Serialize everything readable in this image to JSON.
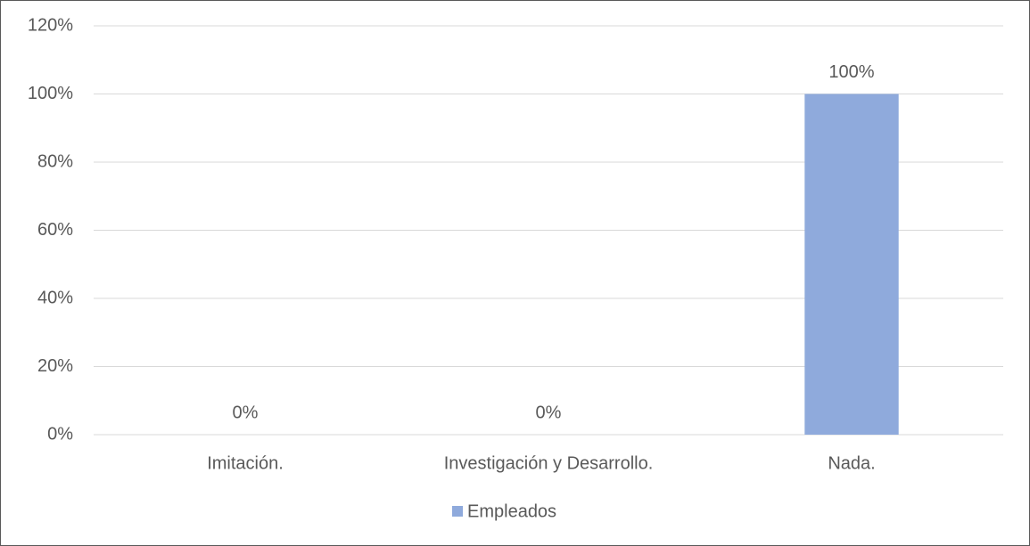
{
  "chart_data": {
    "type": "bar",
    "categories": [
      "Imitación.",
      "Investigación y Desarrollo.",
      "Nada."
    ],
    "series": [
      {
        "name": "Empleados",
        "color": "#8faadc",
        "values": [
          0,
          0,
          100
        ],
        "value_labels": [
          "0%",
          "0%",
          "100%"
        ]
      }
    ],
    "ylim": [
      0,
      120
    ],
    "yticks": [
      {
        "value": 0,
        "label": "0%"
      },
      {
        "value": 20,
        "label": "20%"
      },
      {
        "value": 40,
        "label": "40%"
      },
      {
        "value": 60,
        "label": "60%"
      },
      {
        "value": 80,
        "label": "80%"
      },
      {
        "value": 100,
        "label": "100%"
      },
      {
        "value": 120,
        "label": "120%"
      }
    ],
    "grid": true,
    "legend": "bottom"
  }
}
